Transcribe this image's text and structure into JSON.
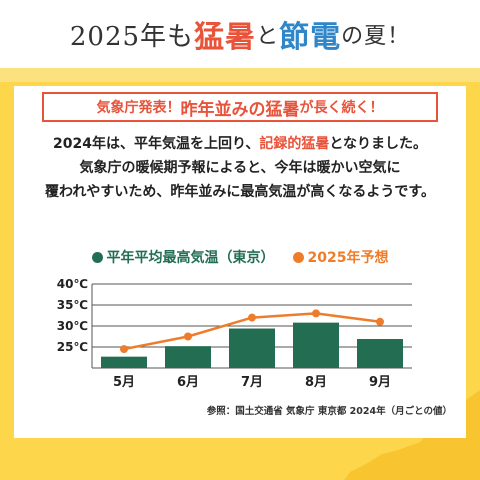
{
  "headline": {
    "prefix": "2025年も",
    "hot": "猛暑",
    "mid": "と",
    "save": "節電",
    "suffix": "の夏！"
  },
  "notice": {
    "part1": "気象庁発表！",
    "part2": "昨年並みの猛暑",
    "part3": "が長く続く！"
  },
  "paragraph": {
    "line1a": "2024年は、平年気温を上回り、",
    "line1b": "記録的猛暑",
    "line1c": "となりました。",
    "line2": "気象庁の暖候期予報によると、今年は暖かい空気に",
    "line3": "覆われやすいため、昨年並みに最高気温が高くなるようです。"
  },
  "colors": {
    "bar": "#236e52",
    "line": "#ee7d2b",
    "accent_red": "#e8533a",
    "accent_blue": "#2f86c8",
    "background_yellow": "#fdd64c"
  },
  "chart_data": {
    "type": "bar",
    "categories": [
      "5月",
      "6月",
      "7月",
      "8月",
      "9月"
    ],
    "series": [
      {
        "name": "平年平均最高気温（東京）",
        "type": "bar",
        "values": [
          22.7,
          25.2,
          29.4,
          30.8,
          26.9
        ]
      },
      {
        "name": "2025年予想",
        "type": "line",
        "values": [
          24.5,
          27.5,
          32.0,
          33.0,
          31.0
        ]
      }
    ],
    "y_ticks": [
      "25℃",
      "30℃",
      "35℃",
      "40℃"
    ],
    "y_tick_values": [
      25,
      30,
      35,
      40
    ],
    "ylim": [
      20,
      40
    ],
    "grid": true,
    "legend_position": "top"
  },
  "footnote": "参照：国土交通省 気象庁 東京都 2024年（月ごとの値）"
}
